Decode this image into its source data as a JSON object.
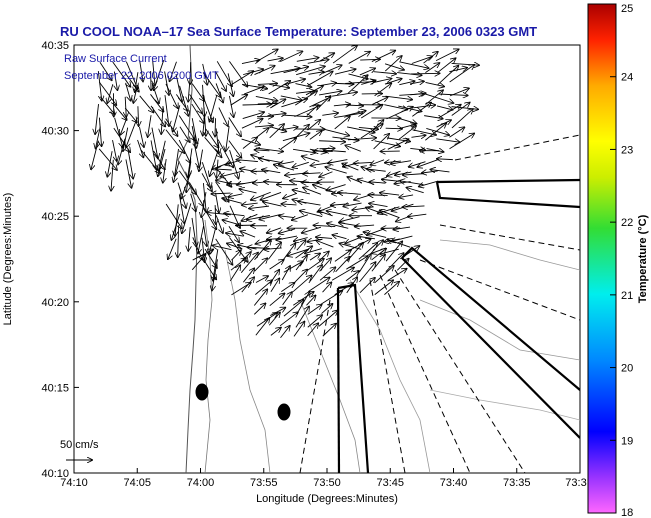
{
  "chart_data": {
    "type": "vector-field-map",
    "title": "RU COOL  NOAA–17  Sea Surface Temperature:  September 23, 2006 0323 GMT",
    "subtitle_lines": [
      "Raw Surface Current",
      "September 22, 2006 0200 GMT"
    ],
    "xlabel": "Longitude (Degrees:Minutes)",
    "ylabel": "Latitude (Degrees:Minutes)",
    "x_ticks": [
      "74:10",
      "74:05",
      "74:00",
      "73:55",
      "73:50",
      "73:45",
      "73:40",
      "73:35",
      "73:3"
    ],
    "y_ticks": [
      "40:35",
      "40:30",
      "40:25",
      "40:20",
      "40:15",
      "40:10"
    ],
    "x_range_deg": [
      74.1667,
      73.5
    ],
    "y_range_deg": [
      40.1667,
      40.5833
    ],
    "colorbar": {
      "label": "Temperature (°C)",
      "ticks": [
        "25",
        "24",
        "23",
        "22",
        "21",
        "20",
        "19",
        "18"
      ],
      "range": [
        18,
        25
      ],
      "colormap": "jet"
    },
    "scale_label": "50 cm/s",
    "black_dots": [
      {
        "lon": "73:58.8",
        "lat": "40:14.6"
      },
      {
        "lon": "73:52.5",
        "lat": "40:13.5"
      }
    ],
    "colors": {
      "title": "#1a1aa8",
      "land": "#ffffff",
      "vectors": "#000000"
    }
  }
}
